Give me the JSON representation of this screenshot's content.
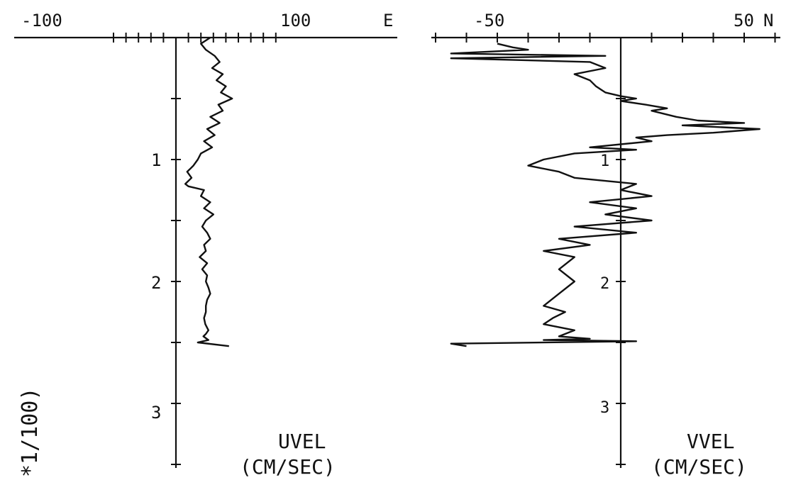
{
  "side_label": "*1/100)",
  "chart_data": [
    {
      "type": "line",
      "orientation": "vertical-profile",
      "x_tick_labels": [
        "-100",
        "100",
        "E"
      ],
      "y_tick_labels": [
        "1",
        "2",
        "3"
      ],
      "xlabel": "UVEL",
      "xlabel_units": "(CM/SEC)",
      "xlim": [
        -120,
        180
      ],
      "ylim": [
        0,
        3.5
      ],
      "grid": false,
      "series": [
        {
          "x": [
            55,
            40,
            48,
            62,
            70,
            58,
            75,
            65,
            80,
            72,
            90,
            68,
            75,
            55,
            70,
            50,
            62,
            45,
            58,
            40,
            35,
            28,
            22,
            18,
            25,
            15,
            20,
            45,
            40,
            55,
            45,
            60,
            48,
            42,
            50,
            55,
            45,
            48,
            38,
            50,
            42,
            50,
            48,
            52,
            55,
            50,
            48,
            48,
            45,
            47,
            52,
            48,
            44,
            52,
            35,
            85
          ],
          "y": [
            0,
            0.05,
            0.1,
            0.15,
            0.2,
            0.25,
            0.3,
            0.35,
            0.4,
            0.45,
            0.5,
            0.55,
            0.6,
            0.65,
            0.7,
            0.75,
            0.8,
            0.85,
            0.9,
            0.95,
            1.0,
            1.05,
            1.08,
            1.1,
            1.15,
            1.2,
            1.22,
            1.25,
            1.3,
            1.35,
            1.4,
            1.45,
            1.5,
            1.55,
            1.6,
            1.65,
            1.7,
            1.75,
            1.8,
            1.85,
            1.9,
            1.95,
            2.0,
            2.05,
            2.1,
            2.15,
            2.2,
            2.25,
            2.3,
            2.35,
            2.4,
            2.43,
            2.45,
            2.48,
            2.5,
            2.53
          ]
        }
      ]
    },
    {
      "type": "line",
      "orientation": "vertical-profile",
      "x_tick_labels": [
        "-50",
        "50",
        "N"
      ],
      "y_tick_labels": [
        "1",
        "2",
        "3"
      ],
      "xlabel": "VVEL",
      "xlabel_units": "(CM/SEC)",
      "xlim": [
        -62,
        100
      ],
      "ylim": [
        0,
        3.5
      ],
      "grid": false,
      "series": [
        {
          "x": [
            -40,
            -35,
            -30,
            -55,
            -5,
            -55,
            -10,
            -5,
            -15,
            -10,
            -8,
            -5,
            0,
            5,
            0,
            8,
            15,
            10,
            18,
            25,
            40,
            20,
            45,
            30,
            15,
            5,
            10,
            -10,
            5,
            -15,
            -25,
            -30,
            -20,
            -15,
            5,
            0,
            10,
            -10,
            5,
            -5,
            10,
            -15,
            5,
            -20,
            -10,
            -25,
            -15,
            -20,
            -15,
            -20,
            -25,
            -18,
            -22,
            -25,
            -15,
            -20,
            -10,
            -25,
            5,
            -55,
            -50
          ],
          "y": [
            0.05,
            0.08,
            0.1,
            0.13,
            0.15,
            0.17,
            0.2,
            0.25,
            0.3,
            0.35,
            0.4,
            0.45,
            0.48,
            0.5,
            0.52,
            0.55,
            0.58,
            0.6,
            0.65,
            0.68,
            0.7,
            0.72,
            0.75,
            0.78,
            0.8,
            0.82,
            0.85,
            0.9,
            0.92,
            0.95,
            1.0,
            1.05,
            1.1,
            1.15,
            1.2,
            1.25,
            1.3,
            1.35,
            1.4,
            1.45,
            1.5,
            1.55,
            1.6,
            1.65,
            1.7,
            1.75,
            1.8,
            1.9,
            2.0,
            2.1,
            2.2,
            2.25,
            2.3,
            2.35,
            2.4,
            2.45,
            2.47,
            2.48,
            2.49,
            2.51,
            2.53
          ]
        }
      ]
    }
  ]
}
